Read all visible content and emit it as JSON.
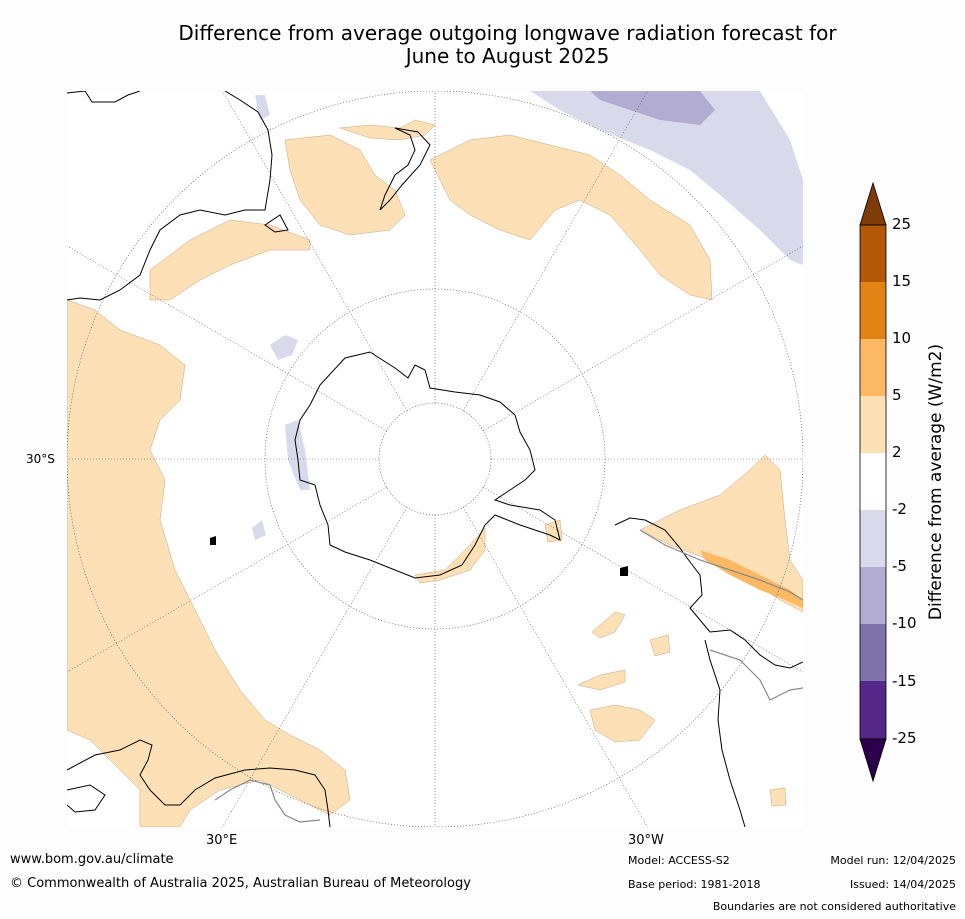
{
  "title_line1": "Difference from average outgoing longwave radiation forecast for",
  "title_line2": "June to August 2025",
  "map": {
    "projection": "south-polar-stereographic",
    "lat_label": "30°S",
    "lon_labels": [
      "30°E",
      "30°W"
    ]
  },
  "colorbar": {
    "title": "Difference from average (W/m2)",
    "ticks": [
      "25",
      "15",
      "10",
      "5",
      "2",
      "-2",
      "-5",
      "-10",
      "-15",
      "-25"
    ],
    "colors": [
      "#7f3b08",
      "#b35806",
      "#e08214",
      "#fdb863",
      "#fee0b6",
      "#ffffff",
      "#d8daeb",
      "#b2abd2",
      "#8073ac",
      "#542788",
      "#2d004b"
    ]
  },
  "footer": {
    "url": "www.bom.gov.au/climate",
    "copyright": "© Commonwealth of Australia 2025, Australian Bureau of Meteorology",
    "model": "Model: ACCESS-S2",
    "base_period": "Base period: 1981-2018",
    "model_run": "Model run: 12/04/2025",
    "issued": "Issued: 14/04/2025",
    "disclaimer": "Boundaries are not considered authoritative"
  }
}
